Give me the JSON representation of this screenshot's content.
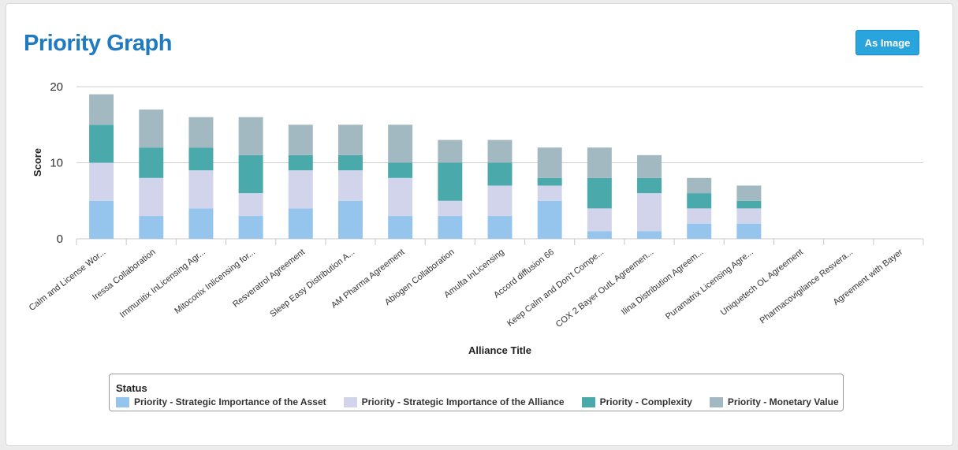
{
  "page": {
    "title": "Priority Graph",
    "export_button_label": "As Image"
  },
  "colors": {
    "title": "#1f7ac2",
    "button": "#2aa4dd",
    "gridline": "#cfcfcf"
  },
  "chart_data": {
    "type": "bar",
    "stacked": true,
    "title": "",
    "xlabel": "Alliance Title",
    "ylabel": "Score",
    "ylim": [
      0,
      20
    ],
    "yticks": [
      0,
      10,
      20
    ],
    "grid": true,
    "legend_title": "Status",
    "legend_placement": "bottom",
    "categories": [
      "Calm and License Wor...",
      "Iressa Collaboration",
      "Immunitix InLicensing Agr...",
      "Mitoconix Inlicensing for...",
      "Resveratrol Agreement",
      "Sleep Easy Distribution A...",
      "AM Pharma Agreement",
      "Abiogen Collaboration",
      "Amulta InLicensing",
      "Accord diffusion 66",
      "Keep Calm and Don't Compe...",
      "COX 2 Bayer OutL Agreemen...",
      "Ilina Distribution Agreem...",
      "Puramatrix Licensing Agre...",
      "Uniquetech OL Agreement",
      "Pharmacovigilance Resvera...",
      "Agreement with Bayer"
    ],
    "series": [
      {
        "name": "Priority - Strategic Importance of the Asset",
        "color": "#95c5ec",
        "values": [
          5,
          3,
          4,
          3,
          4,
          5,
          3,
          3,
          3,
          5,
          1,
          1,
          2,
          2,
          0,
          0,
          0
        ]
      },
      {
        "name": "Priority - Strategic Importance of the Alliance",
        "color": "#d1d4ea",
        "values": [
          5,
          5,
          5,
          3,
          5,
          4,
          5,
          2,
          4,
          2,
          3,
          5,
          2,
          2,
          0,
          0,
          0
        ]
      },
      {
        "name": "Priority - Complexity",
        "color": "#4aa9ab",
        "values": [
          5,
          4,
          3,
          5,
          2,
          2,
          2,
          5,
          3,
          1,
          4,
          2,
          2,
          1,
          0,
          0,
          0
        ]
      },
      {
        "name": "Priority - Monetary Value",
        "color": "#a3b9c2",
        "values": [
          4,
          5,
          4,
          5,
          4,
          4,
          5,
          3,
          3,
          4,
          4,
          3,
          2,
          2,
          0,
          0,
          0
        ]
      }
    ]
  }
}
